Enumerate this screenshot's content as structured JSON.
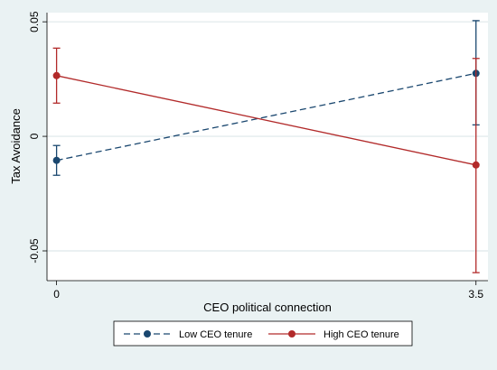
{
  "chart_data": {
    "type": "line",
    "title": "",
    "xlabel": "CEO political connection",
    "ylabel": "Tax Avoidance",
    "x": [
      0,
      3.5
    ],
    "x_tick_labels": [
      "0",
      "3.5"
    ],
    "y_ticks": [
      -0.05,
      0,
      0.05
    ],
    "y_tick_labels": [
      "-0.05",
      "0",
      "0.05"
    ],
    "xlim": [
      -0.08,
      3.6
    ],
    "ylim": [
      -0.063,
      0.054
    ],
    "grid": "horizontal",
    "legend_position": "bottom",
    "series": [
      {
        "name": "Low CEO tenure",
        "color": "#1a476f",
        "line_style": "dashed",
        "values": [
          -0.0105,
          0.0275
        ],
        "ci_low": [
          -0.017,
          0.005
        ],
        "ci_high": [
          -0.004,
          0.0505
        ]
      },
      {
        "name": "High CEO tenure",
        "color": "#b22a2a",
        "line_style": "solid",
        "values": [
          0.0265,
          -0.0125
        ],
        "ci_low": [
          0.0145,
          -0.0595
        ],
        "ci_high": [
          0.0385,
          0.034
        ]
      }
    ]
  }
}
